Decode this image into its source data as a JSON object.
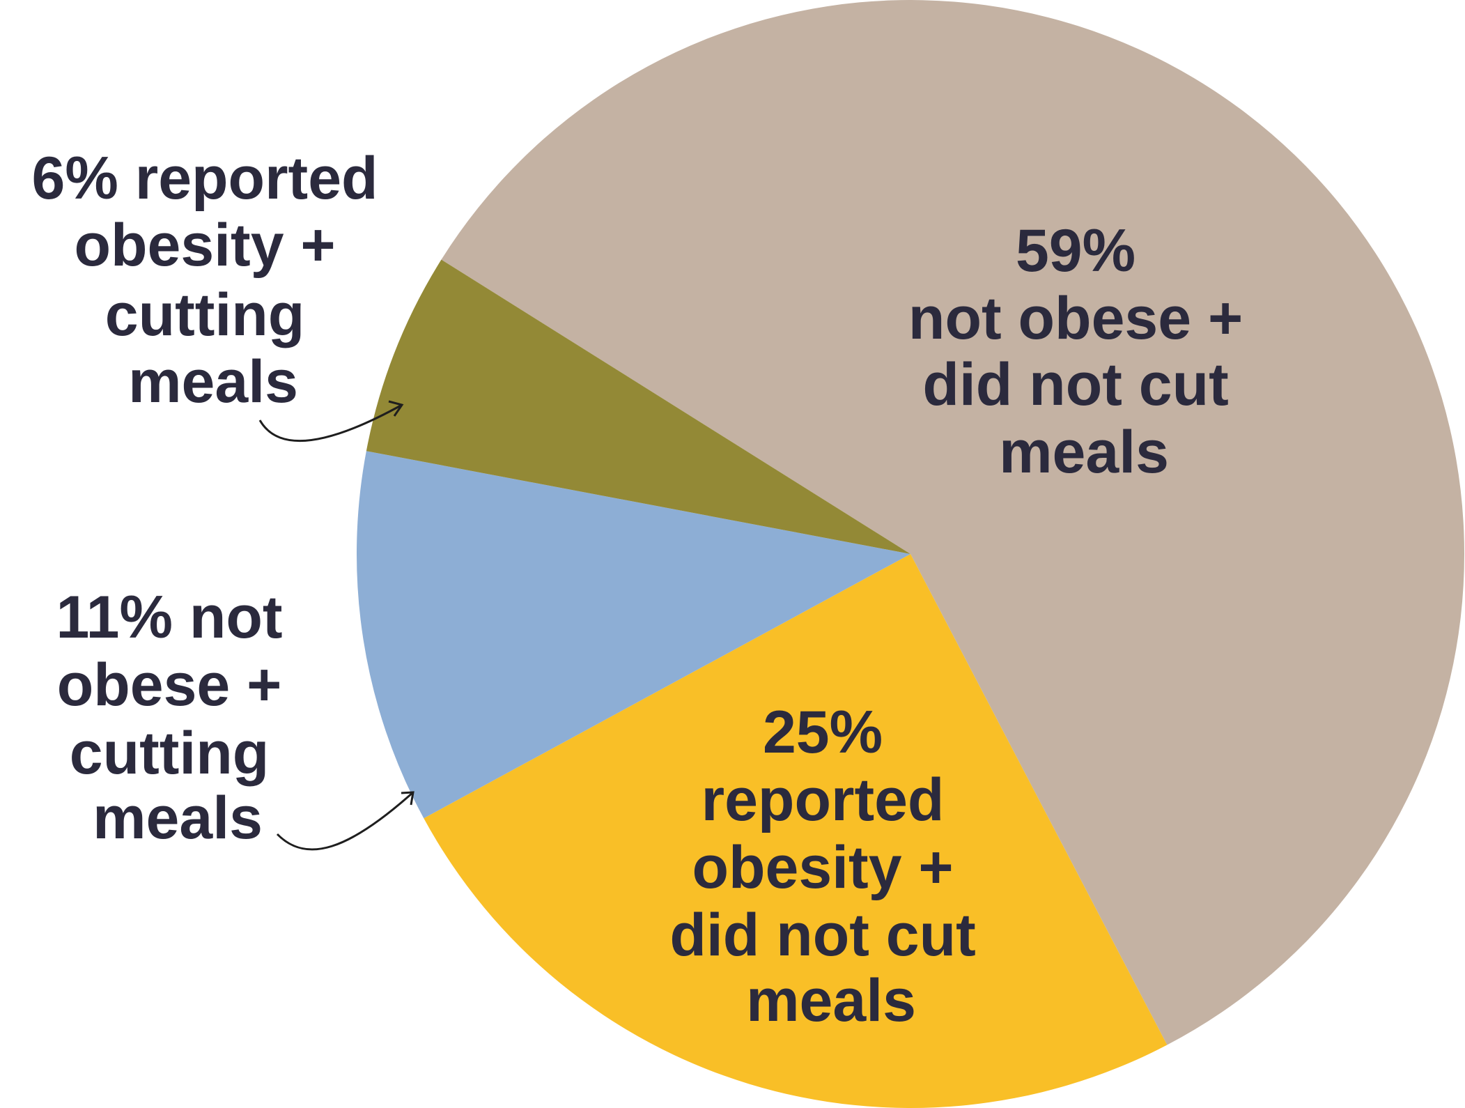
{
  "chart_data": {
    "type": "pie",
    "title": "",
    "slices": [
      {
        "label": "59% not obese + did not cut meals",
        "value": 59,
        "color": "#c4b2a3"
      },
      {
        "label": "25% reported obesity + did not cut meals",
        "value": 25,
        "color": "#f9bf27"
      },
      {
        "label": "11% not obese + cutting meals",
        "value": 11,
        "color": "#8daed5"
      },
      {
        "label": "6% reported obesity + cutting meals",
        "value": 6,
        "color": "#938936"
      }
    ],
    "labels": [
      {
        "lines": [
          "59%",
          "not obese +",
          "did not cut",
          "meals"
        ]
      },
      {
        "lines": [
          "25%",
          "reported",
          "obesity +",
          "did not cut",
          "meals"
        ]
      },
      {
        "lines": [
          "11% not",
          "obese +",
          "cutting",
          "meals"
        ]
      },
      {
        "lines": [
          "6% reported",
          "obesity +",
          "cutting",
          "meals"
        ]
      }
    ],
    "text_color": "#2b2a3d",
    "legend": "none"
  }
}
